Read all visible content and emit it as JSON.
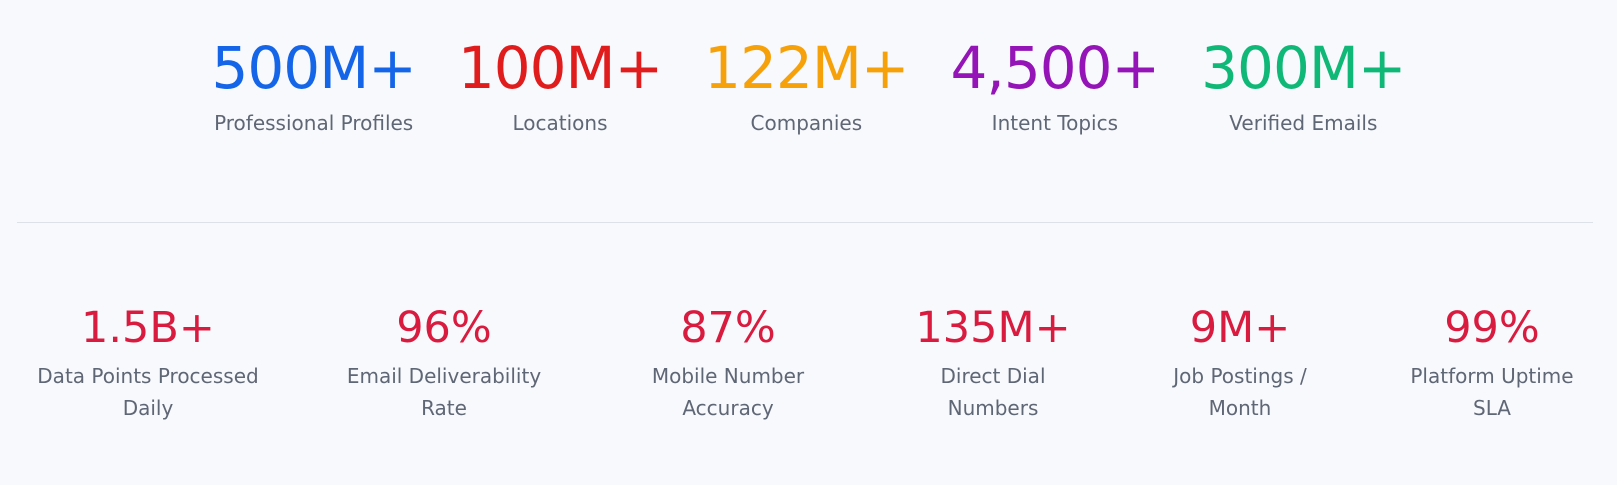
{
  "top_stats": [
    {
      "value": "500M+",
      "label": "Professional Profiles",
      "color": "#1565e8"
    },
    {
      "value": "100M+",
      "label": "Locations",
      "color": "#e01c1c"
    },
    {
      "value": "122M+",
      "label": "Companies",
      "color": "#f7a10a"
    },
    {
      "value": "4,500+",
      "label": "Intent Topics",
      "color": "#9414b8"
    },
    {
      "value": "300M+",
      "label": "Verified Emails",
      "color": "#10b877"
    }
  ],
  "bottom_stats": [
    {
      "value": "1.5B+",
      "label_line1": "Data Points Processed",
      "label_line2": "Daily"
    },
    {
      "value": "96%",
      "label_line1": "Email Deliverability",
      "label_line2": "Rate"
    },
    {
      "value": "87%",
      "label_line1": "Mobile Number",
      "label_line2": "Accuracy"
    },
    {
      "value": "135M+",
      "label_line1": "Direct Dial",
      "label_line2": "Numbers"
    },
    {
      "value": "9M+",
      "label_line1": "Job Postings /",
      "label_line2": "Month"
    },
    {
      "value": "99%",
      "label_line1": "Platform Uptime",
      "label_line2": "SLA"
    }
  ],
  "colors": {
    "bottom_value": "#d81b3f",
    "label": "#5f6675",
    "background": "#f7f9fc"
  }
}
